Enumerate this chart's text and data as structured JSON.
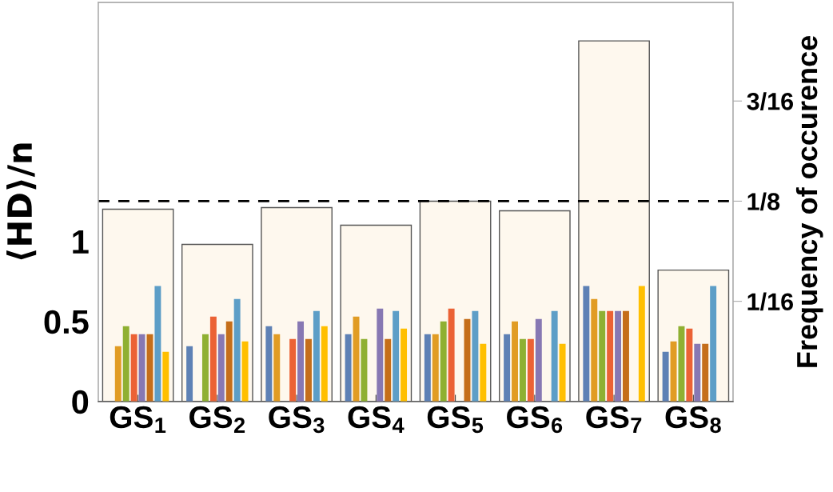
{
  "chart_data": {
    "type": "bar",
    "categories": [
      "GS$_{1}$",
      "GS$_{2}$",
      "GS$_{3}$",
      "GS$_{4}$",
      "GS$_{5}$",
      "GS$_{6}$",
      "GS$_{7}$",
      "GS$_{8}$"
    ],
    "ylabel": "⟨HD⟩/n",
    "y2label": "Frequency of occurence",
    "series": [
      {
        "type": "bar",
        "axis": "y2",
        "color": "#fef8ee",
        "values": [
          0.12,
          0.098,
          0.121,
          0.11,
          0.125,
          0.119,
          0.225,
          0.082
        ]
      },
      {
        "color": "#5e81b5",
        "values": [
          null,
          0.345,
          0.47,
          0.42,
          0.42,
          0.42,
          0.72,
          0.31
        ]
      },
      {
        "color": "#e19c24",
        "values": [
          0.345,
          null,
          0.42,
          0.53,
          0.42,
          0.5,
          0.64,
          0.375
        ]
      },
      {
        "color": "#8fb032",
        "values": [
          0.47,
          0.42,
          null,
          0.39,
          0.5,
          0.39,
          0.565,
          0.47
        ]
      },
      {
        "color": "#eb6235",
        "values": [
          0.42,
          0.53,
          0.39,
          null,
          0.58,
          0.39,
          0.565,
          0.455
        ]
      },
      {
        "color": "#8778b3",
        "values": [
          0.42,
          0.42,
          0.5,
          0.58,
          null,
          0.515,
          0.565,
          0.36
        ]
      },
      {
        "color": "#c56e1a",
        "values": [
          0.42,
          0.5,
          0.39,
          0.39,
          0.515,
          null,
          0.565,
          0.36
        ]
      },
      {
        "color": "#5d9ec7",
        "values": [
          0.72,
          0.64,
          0.565,
          0.565,
          0.565,
          0.565,
          null,
          0.72
        ]
      },
      {
        "color": "#ffbf00",
        "values": [
          0.31,
          0.375,
          0.47,
          0.455,
          0.36,
          0.36,
          0.72,
          null
        ]
      }
    ],
    "ylim": [
      0,
      2.49
    ],
    "yticks": [
      0,
      0.5,
      1
    ],
    "y2lim": [
      0,
      0.249
    ],
    "y2ticks": [
      {
        "value": 0.0625,
        "label": "1/16"
      },
      {
        "value": 0.125,
        "label": "1/8"
      },
      {
        "value": 0.1875,
        "label": "3/16"
      }
    ],
    "ref_lines": [
      {
        "axis": "y2",
        "value": 0.125,
        "color": "#000000",
        "line_style": "dashed"
      }
    ],
    "grid": false,
    "legend": false
  }
}
